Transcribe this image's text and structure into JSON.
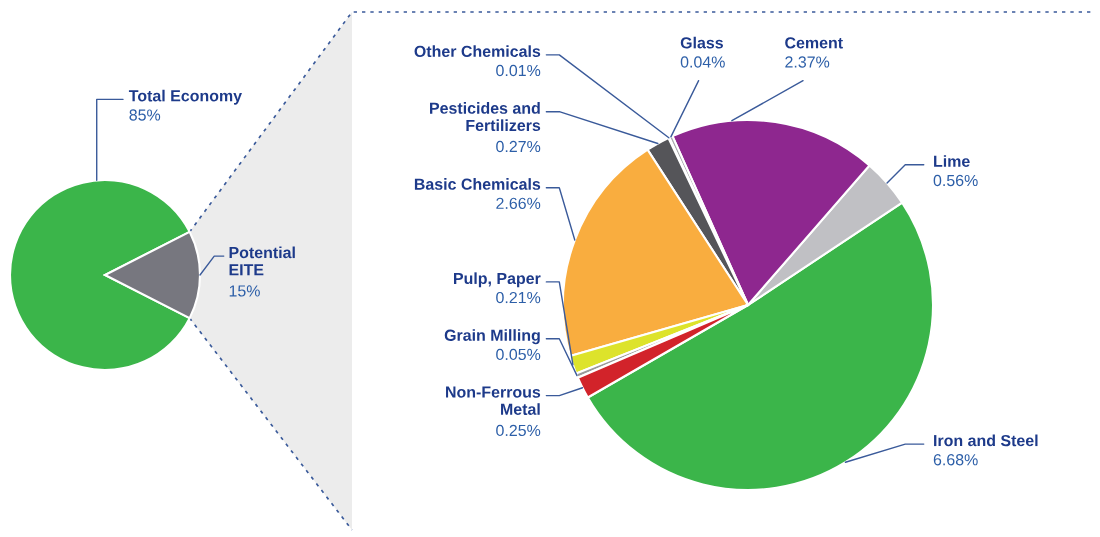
{
  "chart_data": [
    {
      "type": "pie",
      "categories": [
        "Total Economy",
        "Potential EITE"
      ],
      "values": [
        85,
        15
      ],
      "colors": [
        "#3bb54a",
        "#77777f"
      ],
      "value_labels": [
        "85%",
        "15%"
      ]
    },
    {
      "type": "pie",
      "categories": [
        "Iron and Steel",
        "Lime",
        "Cement",
        "Glass",
        "Other Chemicals",
        "Pesticides and Fertilizers",
        "Basic Chemicals",
        "Pulp, Paper",
        "Grain Milling",
        "Non-Ferrous Metal"
      ],
      "values": [
        6.68,
        0.56,
        2.37,
        0.04,
        0.01,
        0.27,
        2.66,
        0.21,
        0.05,
        0.25
      ],
      "colors": [
        "#3bb54a",
        "#c0c0c4",
        "#8e278f",
        "#a8a8ac",
        "#d0d0d4",
        "#555559",
        "#f9ad3f",
        "#dde32b",
        "#9a9a9a",
        "#d2232a"
      ],
      "value_labels": [
        "6.68%",
        "0.56%",
        "2.37%",
        "0.04%",
        "0.01%",
        "0.27%",
        "2.66%",
        "0.21%",
        "0.05%",
        "0.25%"
      ]
    }
  ]
}
